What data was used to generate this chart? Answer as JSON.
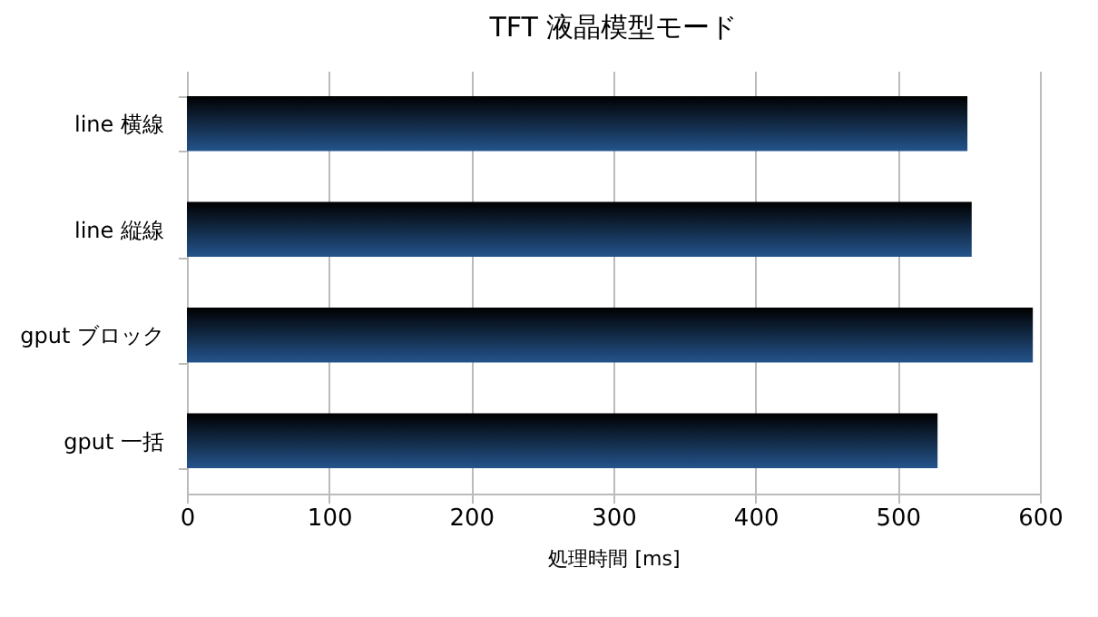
{
  "chart_data": {
    "type": "bar",
    "orientation": "horizontal",
    "title": "TFT 液晶模型モード",
    "xlabel": "処理時間 [ms]",
    "categories": [
      "line 横線",
      "line 縦線",
      "gput ブロック",
      "gput 一括"
    ],
    "values": [
      549,
      552,
      595,
      528
    ],
    "color": "#24548c",
    "xlim": [
      0,
      600
    ],
    "xticks": [
      0,
      100,
      200,
      300,
      400,
      500,
      600
    ],
    "grid": "x"
  }
}
